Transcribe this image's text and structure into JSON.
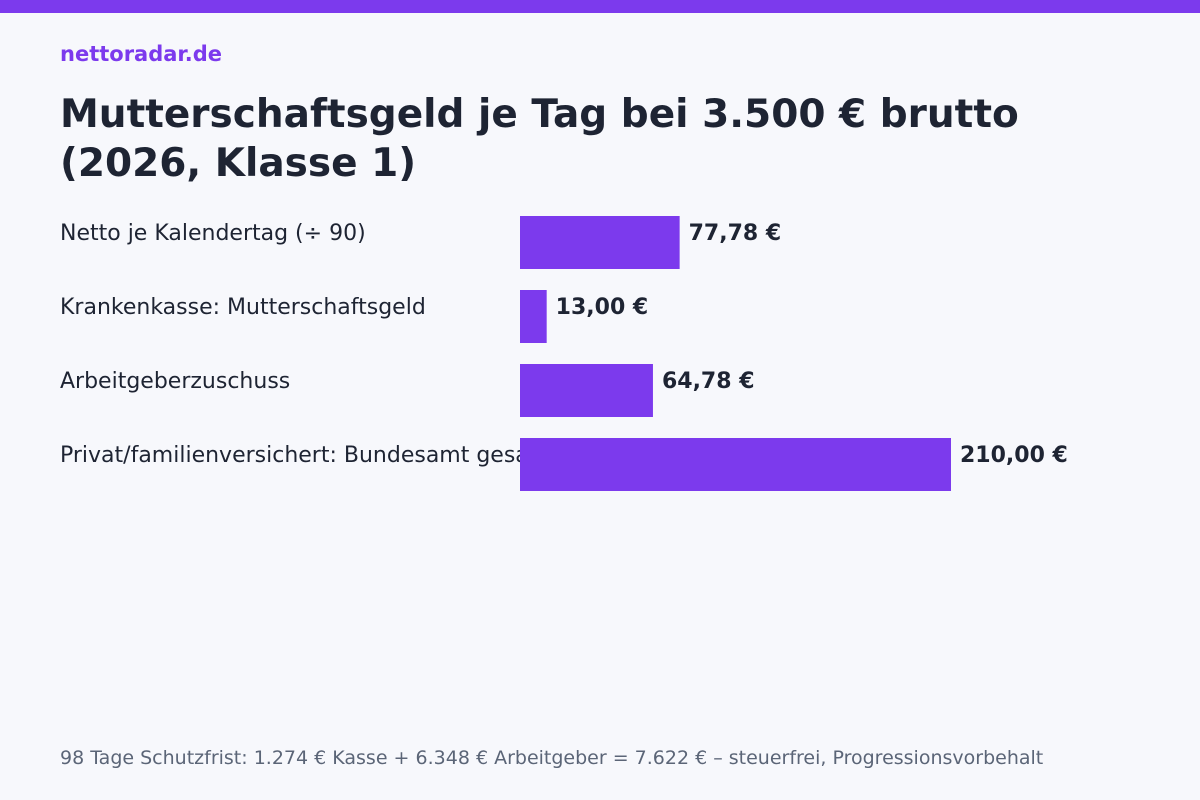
{
  "brand": "nettoradar.de",
  "title": "Mutterschaftsgeld je Tag bei 3.500 € brutto (2026, Klasse 1)",
  "footnote": "98 Tage Schutzfrist: 1.274 € Kasse + 6.348 € Arbeitgeber = 7.622 € – steuerfrei, Progressionsvorbehalt",
  "colors": {
    "accent": "#7c3aed",
    "text": "#1e2433",
    "muted": "#5b6577",
    "background": "#f7f8fc"
  },
  "chart_data": {
    "type": "bar",
    "orientation": "horizontal",
    "categories": [
      "Netto je Kalendertag (÷ 90)",
      "Krankenkasse: Mutterschaftsgeld",
      "Arbeitgeberzuschuss",
      "Privat/familienversichert: Bundesamt gesamt"
    ],
    "values": [
      77.78,
      13.0,
      64.78,
      210.0
    ],
    "value_labels": [
      "77,78 €",
      "13,00 €",
      "64,78 €",
      "210,00 €"
    ],
    "unit": "€",
    "xlim": [
      0,
      210
    ],
    "grid": false,
    "legend": "none"
  }
}
